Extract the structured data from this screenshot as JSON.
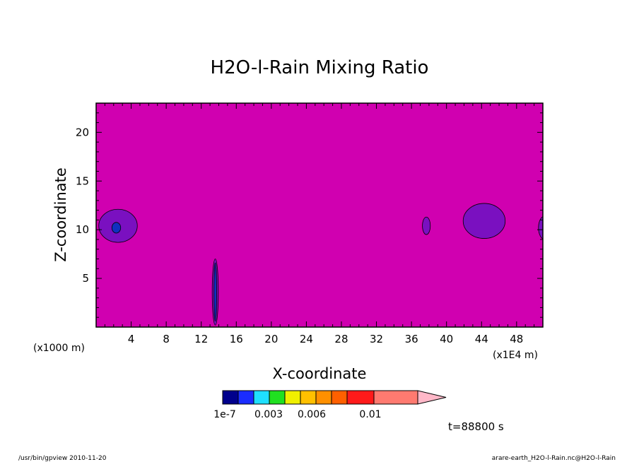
{
  "chart_data": {
    "type": "heatmap",
    "title": "H2O-l-Rain Mixing Ratio",
    "xlabel": "X-coordinate",
    "ylabel": "Z-coordinate",
    "x_unit_left": "(x1000 m)",
    "x_unit_right": "(x1E4 m)",
    "xlim": [
      0,
      51
    ],
    "ylim": [
      0,
      23
    ],
    "x_ticks": [
      4,
      8,
      12,
      16,
      20,
      24,
      28,
      32,
      36,
      40,
      44,
      48
    ],
    "y_ticks": [
      5,
      10,
      15,
      20
    ],
    "background_color": "#d000b0",
    "contour_fill_color": "#7a10c0",
    "inner_core_color": "#1030c0",
    "regions": [
      {
        "level": "low",
        "cx": 2.5,
        "cz": 10.4,
        "rx": 2.2,
        "rz": 1.7
      },
      {
        "level": "core",
        "cx": 2.3,
        "cz": 10.2,
        "rx": 0.5,
        "rz": 0.55
      },
      {
        "level": "low",
        "cx": 13.6,
        "cz": 3.6,
        "rx": 0.35,
        "rz": 3.4
      },
      {
        "level": "core",
        "cx": 13.6,
        "cz": 3.6,
        "rx": 0.15,
        "rz": 3.0
      },
      {
        "level": "low",
        "cx": 37.7,
        "cz": 10.4,
        "rx": 0.45,
        "rz": 0.9
      },
      {
        "level": "low",
        "cx": 44.3,
        "cz": 10.9,
        "rx": 2.4,
        "rz": 1.8
      },
      {
        "level": "low",
        "cx": 51.2,
        "cz": 10.2,
        "rx": 0.7,
        "rz": 1.2
      }
    ],
    "colorbar": {
      "colors": [
        "#00008c",
        "#1a2cff",
        "#1fe0ff",
        "#20e020",
        "#f0f000",
        "#ffc000",
        "#ff9000",
        "#ff6000",
        "#ff1a1a",
        "#ff7a70"
      ],
      "arrow_color": "#ffb8c8",
      "tick_labels": [
        "1e-7",
        "0.003",
        "0.006",
        "0.01"
      ]
    },
    "time_label": "t=88800 s"
  },
  "footer": {
    "left": "/usr/bin/gpview   2010-11-20",
    "right": "arare-earth_H2O-l-Rain.nc@H2O-l-Rain"
  }
}
